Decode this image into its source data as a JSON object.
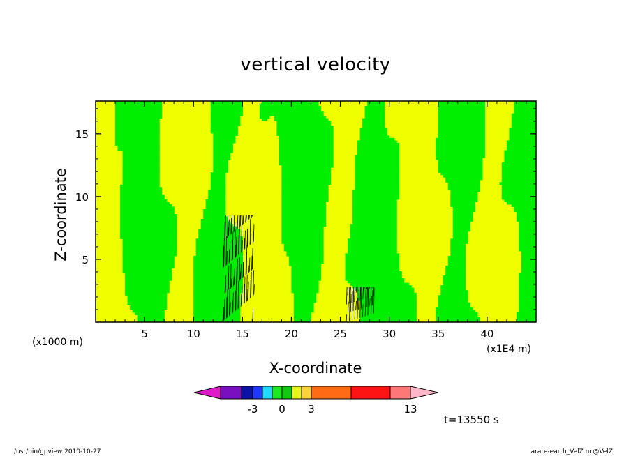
{
  "chart_data": {
    "type": "heatmap",
    "title": "vertical velocity",
    "xlabel": "X-coordinate",
    "ylabel": "Z-coordinate",
    "x_unit_left": "(x1000 m)",
    "x_unit_right": "(x1E4 m)",
    "xlim": [
      0,
      45
    ],
    "ylim": [
      0,
      17.6
    ],
    "x_ticks": [
      "5",
      "10",
      "15",
      "20",
      "25",
      "30",
      "35",
      "40"
    ],
    "y_ticks": [
      "5",
      "10",
      "15"
    ],
    "time_label": "t=13550 s",
    "colorbar": {
      "tick_labels": [
        "-3",
        "0",
        "3",
        "13"
      ],
      "colors": [
        "#e01ac8",
        "#7a0fbf",
        "#0a12a8",
        "#1f37ff",
        "#23d8ff",
        "#1ee81e",
        "#12c812",
        "#e6f51a",
        "#ffd23a",
        "#ff6a14",
        "#ff1414",
        "#ff7878",
        "#ffb6c8"
      ]
    },
    "contour_colors": {
      "positive": "#f0ff00",
      "negative": "#00ee00",
      "strong_positive": "#ffcc33"
    }
  },
  "footer": {
    "left": "/usr/bin/gpview   2010-10-27",
    "right": "arare-earth_VelZ.nc@VelZ"
  }
}
